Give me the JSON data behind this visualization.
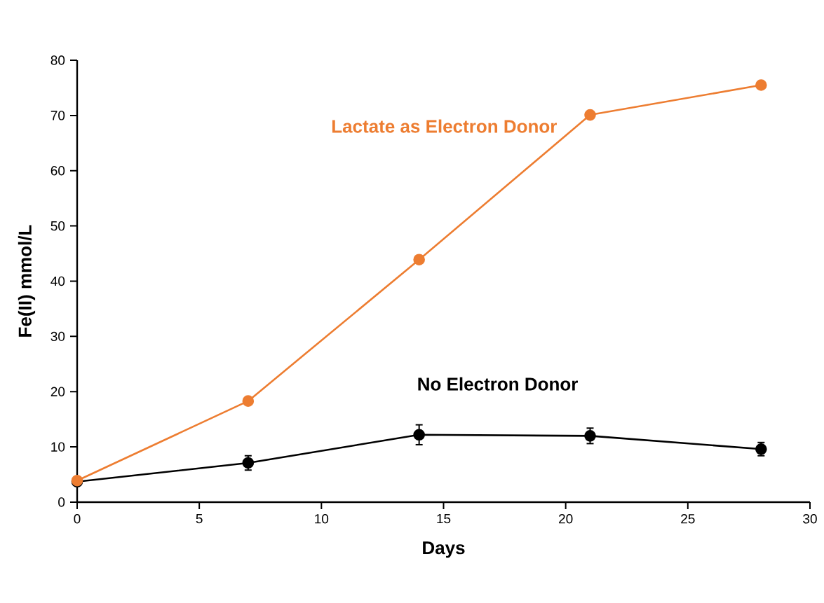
{
  "chart_data": {
    "type": "line",
    "xlabel": "Days",
    "ylabel": "Fe(II) mmol/L",
    "x": [
      0,
      7,
      14,
      21,
      28
    ],
    "series": [
      {
        "name": "Lactate as Electron Donor",
        "color": "#ed7d31",
        "values": [
          3.9,
          18.3,
          43.9,
          70.1,
          75.5
        ]
      },
      {
        "name": "No Electron Donor",
        "color": "#000000",
        "values": [
          3.7,
          7.1,
          12.2,
          12.0,
          9.6
        ],
        "errors": [
          null,
          1.3,
          1.8,
          1.4,
          1.2
        ]
      }
    ],
    "xlim": [
      0,
      30
    ],
    "xticks": [
      0,
      5,
      10,
      15,
      20,
      25,
      30
    ],
    "ylim": [
      0,
      80
    ],
    "yticks": [
      0,
      10,
      20,
      30,
      40,
      50,
      60,
      70,
      80
    ],
    "grid": false,
    "marker": "circle",
    "line_style": "solid"
  }
}
